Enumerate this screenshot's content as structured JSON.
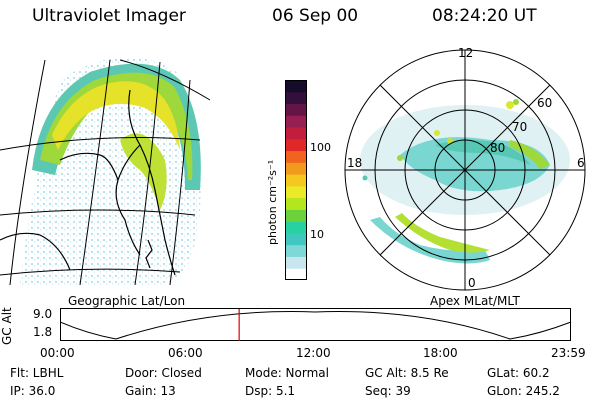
{
  "header": {
    "title": "Ultraviolet Imager",
    "date": "06 Sep 00",
    "time": "08:24:20 UT"
  },
  "colorbar": {
    "unit_label": "photon cm⁻²s⁻¹",
    "ticks": [
      "100",
      "10"
    ],
    "colors": [
      "#ffffff",
      "#c8e6ee",
      "#7fd8d8",
      "#40c8c0",
      "#28d2a0",
      "#6cd23c",
      "#b4e61e",
      "#eaea28",
      "#f4c81e",
      "#f29a1e",
      "#f06420",
      "#e02828",
      "#c01e3c",
      "#961e50",
      "#641446",
      "#32103c",
      "#140c28"
    ]
  },
  "projection_labels": {
    "geographic": "Geographic Lat/Lon",
    "apex": "Apex  MLat/MLT"
  },
  "polar": {
    "mlt_labels": [
      "12",
      "18",
      "6",
      "0"
    ],
    "lat_labels": [
      "60",
      "70",
      "80"
    ]
  },
  "altitude_plot": {
    "ylabel": "GC Alt",
    "ytick_top": "9.0",
    "ytick_bottom": "1.8",
    "xticks": [
      "00:00",
      "06:00",
      "12:00",
      "18:00",
      "23:59"
    ],
    "current_time_fraction": 0.35,
    "marker_color": "#e00000"
  },
  "status": {
    "filter": "Flt: LBHL",
    "door": "Door: Closed",
    "mode": "Mode: Normal",
    "gc_alt": "GC Alt: 8.5 Re",
    "glat": "GLat:  60.2",
    "ip": "IP: 36.0",
    "gain": "Gain: 13",
    "dsp": "Dsp:     5.1",
    "seq": "Seq: 39",
    "glon": "GLon: 245.2"
  }
}
